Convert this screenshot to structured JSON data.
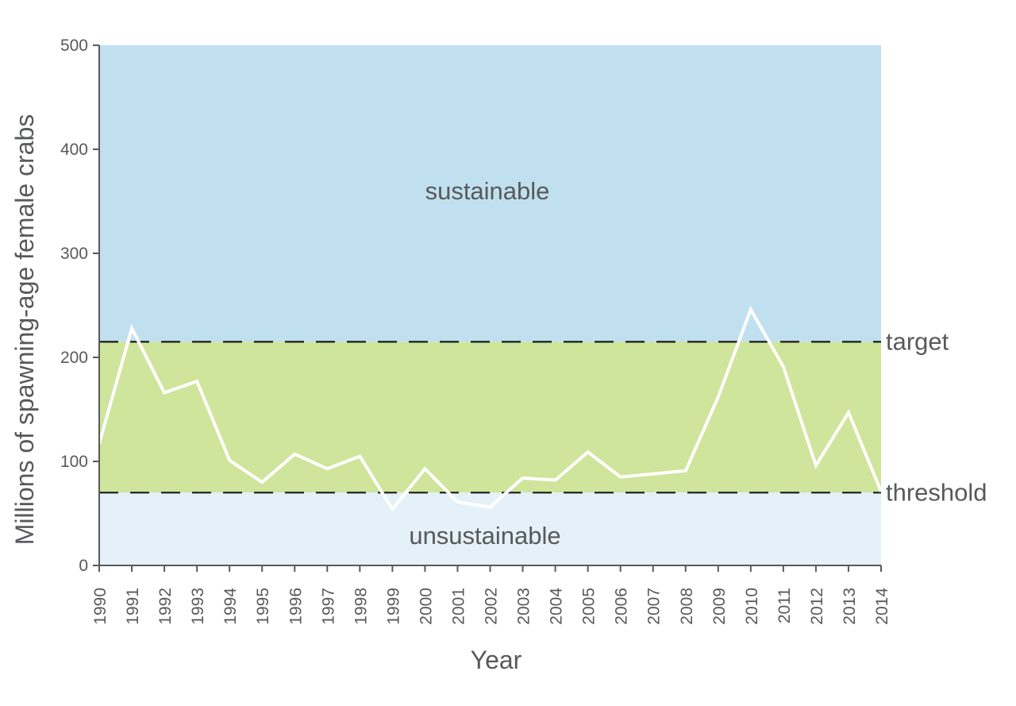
{
  "chart_data": {
    "type": "line",
    "title": "",
    "xlabel": "Year",
    "ylabel": "Millions of spawning-age female crabs",
    "ylim": [
      0,
      500
    ],
    "yticks": [
      0,
      100,
      200,
      300,
      400,
      500
    ],
    "categories": [
      "1990",
      "1991",
      "1992",
      "1993",
      "1994",
      "1995",
      "1996",
      "1997",
      "1998",
      "1999",
      "2000",
      "2001",
      "2002",
      "2003",
      "2004",
      "2005",
      "2006",
      "2007",
      "2008",
      "2009",
      "2010",
      "2011",
      "2012",
      "2013",
      "2014"
    ],
    "series": [
      {
        "values": [
          117,
          228,
          166,
          177,
          101,
          80,
          107,
          93,
          105,
          54,
          93,
          61,
          56,
          84,
          82,
          109,
          85,
          88,
          91,
          162,
          246,
          191,
          96,
          147,
          71
        ]
      }
    ],
    "reference_lines": [
      {
        "label": "target",
        "value": 215
      },
      {
        "label": "threshold",
        "value": 70
      }
    ],
    "zones": [
      {
        "label": "sustainable",
        "from": 215,
        "to": 500,
        "color": "#c1e0ef"
      },
      {
        "label": "",
        "from": 70,
        "to": 215,
        "color": "#cfe59b"
      },
      {
        "label": "unsustainable",
        "from": 0,
        "to": 70,
        "color": "#e4f1f8"
      }
    ],
    "line_color": "#ffffff",
    "grid": false,
    "legend": "none"
  }
}
